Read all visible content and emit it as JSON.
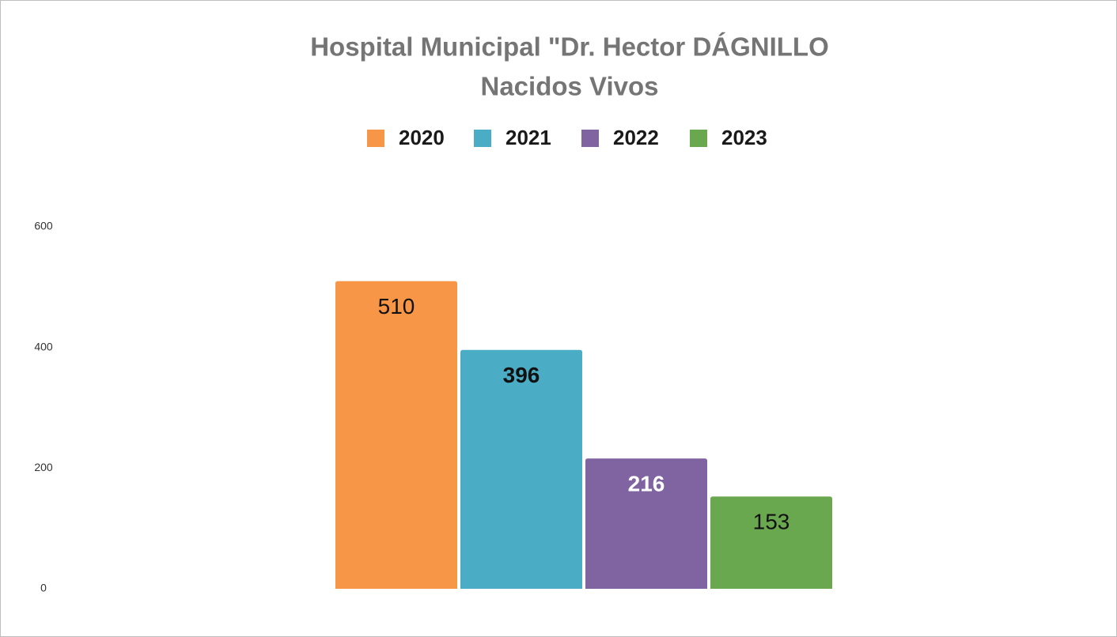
{
  "chart_data": {
    "type": "bar",
    "title": "Hospital Municipal \"Dr. Hector DÁGNILLO",
    "subtitle": "Nacidos Vivos",
    "series": [
      {
        "name": "2020",
        "color": "#f79646",
        "values": [
          510
        ]
      },
      {
        "name": "2021",
        "color": "#4bacc6",
        "values": [
          396
        ]
      },
      {
        "name": "2022",
        "color": "#8064a2",
        "values": [
          216
        ]
      },
      {
        "name": "2023",
        "color": "#6aa84f",
        "values": [
          153
        ]
      }
    ],
    "ylim": [
      0,
      600
    ],
    "yticks": [
      0,
      200,
      400,
      600
    ],
    "grid": false,
    "legend": "top"
  }
}
